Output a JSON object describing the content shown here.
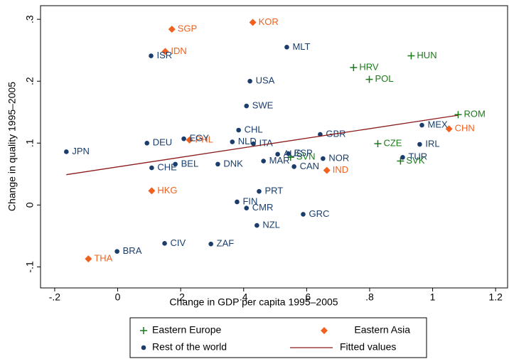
{
  "chart_data": {
    "type": "scatter",
    "xlabel": "Change in GDP per capita 1995–2005",
    "ylabel": "Change in quality 1995–2005",
    "xlim": [
      -0.245,
      1.238
    ],
    "ylim": [
      -0.134,
      0.322
    ],
    "xticks": [
      {
        "value": -0.2,
        "label": "-.2"
      },
      0,
      {
        "value": 0.2,
        "label": ".2"
      },
      {
        "value": 0.4,
        "label": ".4"
      },
      {
        "value": 0.6,
        "label": ".6"
      },
      {
        "value": 0.8,
        "label": ".8"
      },
      1,
      1.2
    ],
    "yticks": [
      {
        "value": -0.1,
        "label": "-.1"
      },
      0,
      {
        "value": 0.1,
        "label": ".1"
      },
      {
        "value": 0.2,
        "label": ".2"
      },
      {
        "value": 0.3,
        "label": ".3"
      }
    ],
    "series": [
      {
        "name": "Eastern Europe",
        "color": "#1a7a1a",
        "marker": "plus",
        "labels": [
          "HUN",
          "HRV",
          "POL",
          "ROM",
          "CZE",
          "SVK",
          "SVN"
        ],
        "x": [
          0.932,
          0.749,
          0.799,
          1.081,
          0.826,
          0.898,
          0.549
        ],
        "values": [
          0.241,
          0.222,
          0.203,
          0.146,
          0.099,
          0.071,
          0.077
        ]
      },
      {
        "name": "Eastern Asia",
        "color": "#f0601e",
        "marker": "diamond",
        "labels": [
          "KOR",
          "SGP",
          "IDN",
          "CHN",
          "IND",
          "HKG",
          "THA",
          "PHL"
        ],
        "x": [
          0.429,
          0.172,
          0.151,
          1.052,
          0.664,
          0.108,
          -0.093,
          0.228
        ],
        "values": [
          0.295,
          0.284,
          0.248,
          0.123,
          0.056,
          0.023,
          -0.087,
          0.105
        ]
      },
      {
        "name": "Rest of the world",
        "color": "#1a3d6b",
        "marker": "circle",
        "labels": [
          "JPN",
          "DEU",
          "CHE",
          "BEL",
          "DNK",
          "ISR",
          "USA",
          "MLT",
          "SWE",
          "CHL",
          "NLD",
          "ITA",
          "MEX",
          "IRL",
          "TUR",
          "GBR",
          "NOR",
          "CAN",
          "MAR",
          "AUS",
          "ESP",
          "PRT",
          "FIN",
          "CMR",
          "GRC",
          "NZL",
          "ZAF",
          "CIV",
          "BRA",
          "EGY"
        ],
        "x": [
          -0.163,
          0.093,
          0.108,
          0.183,
          0.318,
          0.106,
          0.42,
          0.537,
          0.409,
          0.384,
          0.364,
          0.431,
          0.966,
          0.959,
          0.905,
          0.643,
          0.652,
          0.56,
          0.463,
          0.508,
          0.542,
          0.449,
          0.379,
          0.409,
          0.589,
          0.442,
          0.296,
          0.149,
          -0.002,
          0.21
        ],
        "values": [
          0.086,
          0.1,
          0.06,
          0.066,
          0.066,
          0.241,
          0.2,
          0.255,
          0.16,
          0.121,
          0.102,
          0.099,
          0.129,
          0.098,
          0.077,
          0.114,
          0.075,
          0.062,
          0.071,
          0.082,
          0.083,
          0.022,
          0.005,
          -0.005,
          -0.015,
          -0.033,
          -0.063,
          -0.062,
          -0.075,
          0.107
        ]
      },
      {
        "name": "Fitted values",
        "color": "#8b1a1a",
        "type": "line",
        "x": [
          -0.163,
          1.081
        ],
        "values": [
          0.049,
          0.145
        ]
      }
    ]
  }
}
